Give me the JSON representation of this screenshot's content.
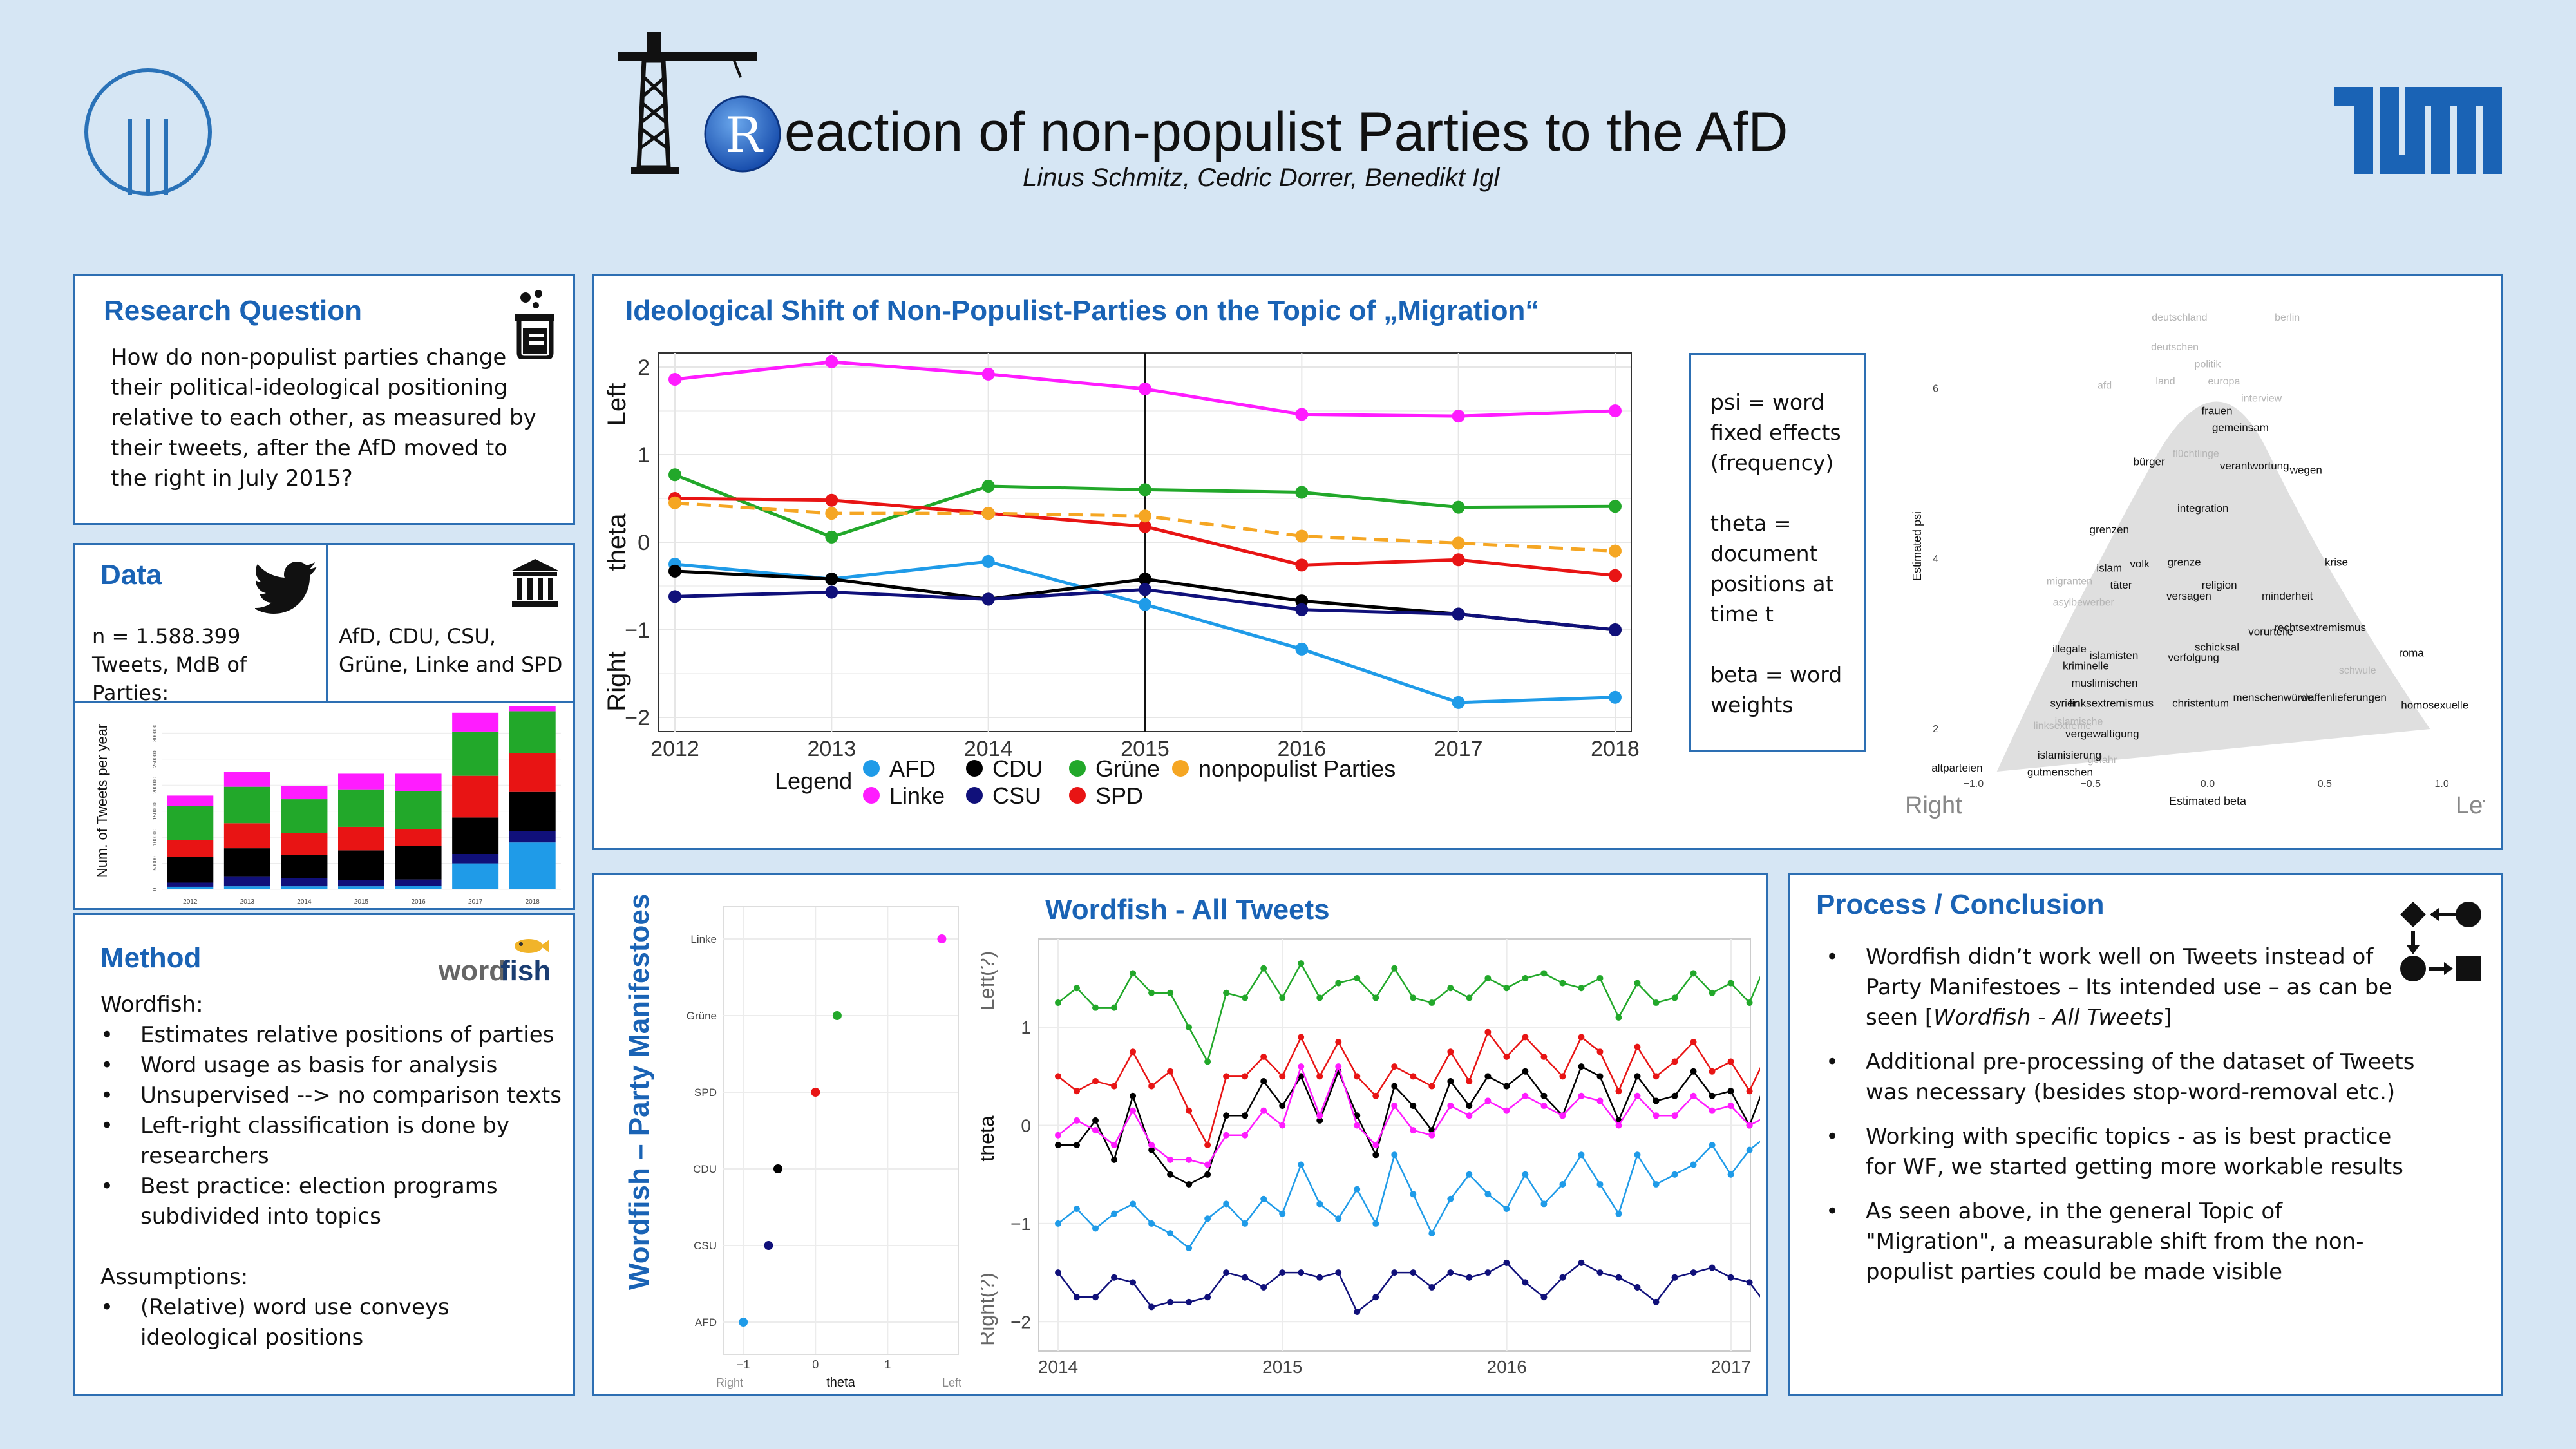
{
  "header": {
    "title_initial": "R",
    "title_rest": "eaction of non-populist Parties to the AfD",
    "authors": "Linus Schmitz, Cedric Dorrer, Benedikt Igl",
    "right_logo": "TUM"
  },
  "research_question": {
    "title": "Research Question",
    "text": "How do non-populist parties change their political-ideological positioning relative to each other, as measured by their tweets, after the AfD moved to the right in July 2015?"
  },
  "data_panel": {
    "title": "Data",
    "left_text": "n = 1.588.399 Tweets, MdB of Parties:",
    "right_text": "AfD, CDU, CSU, Grüne, Linke and SPD"
  },
  "method": {
    "title": "Method",
    "logo_word": "word",
    "logo_fish": "fish",
    "intro": "Wordfish:",
    "bullets": [
      "Estimates relative positions of parties",
      "Word usage as basis for analysis",
      "Unsupervised --> no comparison texts",
      "Left-right classification is done by researchers",
      "Best practice: election programs subdivided into topics"
    ],
    "assumptions_title": "Assumptions:",
    "assumptions": [
      "(Relative) word use conveys ideological positions"
    ]
  },
  "ideological": {
    "title": "Ideological Shift of Non-Populist-Parties on the Topic of „Migration“",
    "definitions": [
      "psi = word fixed effects (frequency)",
      "theta = document positions at time t",
      "beta = word weights"
    ],
    "scatter_left_label": "Right",
    "scatter_right_label": "Left"
  },
  "wordfish_manifestos_title": "Wordfish – Party Manifestoes",
  "wordfish_all_title": "Wordfish - All Tweets",
  "conclusion": {
    "title": "Process / Conclusion",
    "bullets": [
      {
        "pre": "Wordfish didn’t work well on Tweets instead of Party Manifestoes – Its intended use – as can be seen [",
        "em": "Wordfish - All Tweets",
        "post": "]"
      },
      {
        "pre": "Additional pre-processing of the dataset of Tweets was necessary (besides stop-word-removal etc.)",
        "em": "",
        "post": ""
      },
      {
        "pre": "Working with specific topics - as is best practice for WF, we started getting more workable results",
        "em": "",
        "post": ""
      },
      {
        "pre": "As seen above, in the general Topic of  \"Migration\", a measurable shift from the non-populist parties could be made visible",
        "em": "",
        "post": ""
      }
    ]
  },
  "colors": {
    "AFD": "#1f9be8",
    "Linke": "#ff1cff",
    "CDU": "#000000",
    "Grüne": "#22a82a",
    "CSU": "#10107a",
    "SPD": "#e81414",
    "nonpopulist": "#f5a623",
    "accent": "#1a63b5"
  },
  "chart_data": [
    {
      "type": "line",
      "title": "",
      "xlabel": "",
      "ylabel": "theta",
      "ylabel_top": "Left",
      "ylabel_bottom": "Right",
      "x": [
        2012,
        2013,
        2014,
        2015,
        2016,
        2017,
        2018
      ],
      "xlim": [
        2012,
        2018
      ],
      "ylim": [
        -2,
        2
      ],
      "yticks": [
        2,
        1,
        0,
        -1,
        -2
      ],
      "yticks_text": [
        "2",
        "1",
        "0",
        "−1",
        "−2"
      ],
      "vline": 2015,
      "legend_title": "Legend",
      "series": [
        {
          "name": "AFD",
          "values": [
            -0.25,
            -0.42,
            -0.22,
            -0.71,
            -1.22,
            -1.83,
            -1.77
          ]
        },
        {
          "name": "Linke",
          "values": [
            1.86,
            2.06,
            1.92,
            1.75,
            1.46,
            1.44,
            1.5
          ]
        },
        {
          "name": "CDU",
          "values": [
            -0.33,
            -0.42,
            -0.65,
            -0.42,
            -0.67,
            -0.82,
            -1.0
          ]
        },
        {
          "name": "CSU",
          "values": [
            -0.62,
            -0.57,
            -0.65,
            -0.54,
            -0.77,
            -0.82,
            -1.0
          ]
        },
        {
          "name": "Grüne",
          "values": [
            0.77,
            0.06,
            0.64,
            0.6,
            0.57,
            0.4,
            0.41
          ]
        },
        {
          "name": "SPD",
          "values": [
            0.5,
            0.48,
            0.33,
            0.18,
            -0.26,
            -0.2,
            -0.38
          ]
        },
        {
          "name": "nonpopulist Parties",
          "dashed": true,
          "values": [
            0.45,
            0.33,
            0.33,
            0.3,
            0.07,
            -0.01,
            -0.1
          ]
        }
      ]
    },
    {
      "type": "bar",
      "title": "",
      "ylabel": "Num. of Tweets per year",
      "categories": [
        "2012",
        "2013",
        "2014",
        "2015",
        "2016",
        "2017",
        "2018"
      ],
      "ylim": [
        0,
        340000
      ],
      "yticks": [
        0,
        50000,
        100000,
        150000,
        200000,
        250000,
        300000
      ],
      "yticks_text": [
        "0",
        "50000",
        "100000",
        "150000",
        "200000",
        "250000",
        "300000"
      ],
      "stack_order": [
        "AFD",
        "CSU",
        "CDU",
        "SPD",
        "Grüne",
        "Linke"
      ],
      "series": [
        {
          "name": "AFD",
          "values": [
            5000,
            6000,
            6000,
            6000,
            7000,
            50000,
            90000
          ]
        },
        {
          "name": "CSU",
          "values": [
            8000,
            18000,
            16000,
            12000,
            12000,
            18000,
            22000
          ]
        },
        {
          "name": "CDU",
          "values": [
            50000,
            55000,
            44000,
            57000,
            65000,
            70000,
            75000
          ]
        },
        {
          "name": "SPD",
          "values": [
            32000,
            48000,
            42000,
            45000,
            32000,
            80000,
            75000
          ]
        },
        {
          "name": "Grüne",
          "values": [
            65000,
            70000,
            65000,
            72000,
            72000,
            85000,
            80000
          ]
        },
        {
          "name": "Linke",
          "values": [
            20000,
            28000,
            26000,
            30000,
            34000,
            36000,
            38000
          ]
        }
      ]
    },
    {
      "type": "scatter",
      "xlabel": "Estimated beta",
      "ylabel": "Estimated psi",
      "xlim": [
        -1.1,
        1.1
      ],
      "ylim": [
        1.5,
        6.8
      ],
      "xticks": [
        -1.0,
        -0.5,
        0.0,
        0.5,
        1.0
      ],
      "xticks_text": [
        "−1.0",
        "−0.5",
        "0.0",
        "0.5",
        "1.0"
      ],
      "yticks": [
        2,
        4,
        6
      ],
      "highlighted_words": [
        {
          "w": "frauen",
          "x": 0.04,
          "y": 5.7
        },
        {
          "w": "gemeinsam",
          "x": 0.14,
          "y": 5.5
        },
        {
          "w": "bürger",
          "x": -0.25,
          "y": 5.1
        },
        {
          "w": "verantwortung",
          "x": 0.2,
          "y": 5.05
        },
        {
          "w": "wegen",
          "x": 0.42,
          "y": 5.0
        },
        {
          "w": "integration",
          "x": -0.02,
          "y": 4.55
        },
        {
          "w": "grenzen",
          "x": -0.42,
          "y": 4.3
        },
        {
          "w": "islam",
          "x": -0.42,
          "y": 3.85
        },
        {
          "w": "volk",
          "x": -0.29,
          "y": 3.9
        },
        {
          "w": "grenze",
          "x": -0.1,
          "y": 3.92
        },
        {
          "w": "krise",
          "x": 0.55,
          "y": 3.92
        },
        {
          "w": "täter",
          "x": -0.37,
          "y": 3.65
        },
        {
          "w": "religion",
          "x": 0.05,
          "y": 3.65
        },
        {
          "w": "versagen",
          "x": -0.08,
          "y": 3.52
        },
        {
          "w": "minderheit",
          "x": 0.34,
          "y": 3.52
        },
        {
          "w": "vorurteile",
          "x": 0.27,
          "y": 3.1
        },
        {
          "w": "rechtsextremismus",
          "x": 0.48,
          "y": 3.15
        },
        {
          "w": "illegale",
          "x": -0.59,
          "y": 2.9
        },
        {
          "w": "schicksal",
          "x": 0.04,
          "y": 2.92
        },
        {
          "w": "roma",
          "x": 0.87,
          "y": 2.85
        },
        {
          "w": "islamisten",
          "x": -0.4,
          "y": 2.82
        },
        {
          "w": "verfolgung",
          "x": -0.06,
          "y": 2.8
        },
        {
          "w": "kriminelle",
          "x": -0.52,
          "y": 2.7
        },
        {
          "w": "muslimischen",
          "x": -0.44,
          "y": 2.5
        },
        {
          "w": "syrien",
          "x": -0.61,
          "y": 2.26
        },
        {
          "w": "linksextremismus",
          "x": -0.41,
          "y": 2.26
        },
        {
          "w": "christentum",
          "x": -0.03,
          "y": 2.26
        },
        {
          "w": "menschenwürde",
          "x": 0.28,
          "y": 2.33
        },
        {
          "w": "waffenlieferungen",
          "x": 0.58,
          "y": 2.33
        },
        {
          "w": "homosexuelle",
          "x": 0.97,
          "y": 2.24
        },
        {
          "w": "vergewaltigung",
          "x": -0.45,
          "y": 1.9
        },
        {
          "w": "islamisierung",
          "x": -0.59,
          "y": 1.65
        },
        {
          "w": "gutmenschen",
          "x": -0.63,
          "y": 1.45
        },
        {
          "w": "altparteien",
          "x": -1.07,
          "y": 1.5
        }
      ],
      "grey_words": [
        {
          "w": "deutschland",
          "x": -0.12,
          "y": 6.8
        },
        {
          "w": "berlin",
          "x": 0.34,
          "y": 6.8
        },
        {
          "w": "deutschen",
          "x": -0.14,
          "y": 6.45
        },
        {
          "w": "politik",
          "x": 0.0,
          "y": 6.25
        },
        {
          "w": "land",
          "x": -0.18,
          "y": 6.05
        },
        {
          "w": "europa",
          "x": 0.07,
          "y": 6.05
        },
        {
          "w": "afd",
          "x": -0.44,
          "y": 6.0
        },
        {
          "w": "interview",
          "x": 0.23,
          "y": 5.85
        },
        {
          "w": "migranten",
          "x": -0.59,
          "y": 3.7
        },
        {
          "w": "flüchtlinge",
          "x": -0.05,
          "y": 5.2
        },
        {
          "w": "asylbewerber",
          "x": -0.53,
          "y": 3.45
        },
        {
          "w": "schwule",
          "x": 0.64,
          "y": 2.65
        },
        {
          "w": "linksextreme",
          "x": -0.62,
          "y": 2.0
        },
        {
          "w": "islamische",
          "x": -0.55,
          "y": 2.05
        },
        {
          "w": "gefahr",
          "x": -0.45,
          "y": 1.6
        }
      ]
    },
    {
      "type": "scatter",
      "xlabel": "theta",
      "xlabel_left": "Right",
      "xlabel_right": "Left",
      "xlim": [
        -1.1,
        1.8
      ],
      "xticks": [
        -1,
        0,
        1
      ],
      "xticks_text": [
        "−1",
        "0",
        "1"
      ],
      "categories": [
        "AFD",
        "CSU",
        "CDU",
        "SPD",
        "Grüne",
        "Linke"
      ],
      "category_labels": [
        "AFD",
        "CSU",
        "CDU",
        "SPD",
        "Grüne",
        "Linke"
      ],
      "values": [
        -1.0,
        -0.65,
        -0.52,
        0.0,
        0.3,
        1.75
      ]
    },
    {
      "type": "line",
      "title": "Wordfish - All Tweets",
      "ylabel": "theta",
      "ylabel_top": "Left(?)",
      "ylabel_bottom": "Right(?)",
      "xlim": [
        2014.0,
        2017.0
      ],
      "ylim": [
        -2.3,
        1.9
      ],
      "xticks": [
        2014,
        2015,
        2016,
        2017
      ],
      "yticks": [
        1,
        0,
        -1,
        -2
      ],
      "yticks_text": [
        "1",
        "0",
        "−1",
        "−2"
      ],
      "x_start": 2014.0,
      "x_step": 0.0833,
      "series": [
        {
          "name": "Grüne",
          "values": [
            1.25,
            1.4,
            1.2,
            1.2,
            1.55,
            1.35,
            1.35,
            1.0,
            0.65,
            1.35,
            1.3,
            1.6,
            1.3,
            1.65,
            1.3,
            1.45,
            1.5,
            1.3,
            1.6,
            1.3,
            1.25,
            1.4,
            1.3,
            1.5,
            1.4,
            1.5,
            1.55,
            1.45,
            1.4,
            1.5,
            1.1,
            1.45,
            1.25,
            1.3,
            1.55,
            1.35,
            1.45,
            1.25,
            1.7,
            1.2,
            1.35,
            1.65,
            1.25,
            1.4,
            1.35,
            1.6,
            1.2
          ]
        },
        {
          "name": "SPD",
          "values": [
            0.5,
            0.35,
            0.45,
            0.4,
            0.75,
            0.4,
            0.55,
            0.15,
            -0.2,
            0.5,
            0.5,
            0.7,
            0.5,
            0.9,
            0.5,
            0.85,
            0.5,
            0.3,
            0.6,
            0.5,
            0.4,
            0.75,
            0.45,
            0.95,
            0.7,
            0.9,
            0.7,
            0.5,
            0.9,
            0.75,
            0.35,
            0.8,
            0.5,
            0.65,
            0.85,
            0.55,
            0.65,
            0.35,
            0.75,
            -0.2,
            0.6,
            1.1,
            0.6,
            0.8,
            0.6,
            1.15,
            0.75
          ]
        },
        {
          "name": "CDU",
          "values": [
            -0.2,
            -0.2,
            0.05,
            -0.35,
            0.3,
            -0.25,
            -0.5,
            -0.6,
            -0.5,
            0.1,
            0.1,
            0.45,
            0.2,
            0.5,
            0.05,
            0.55,
            0.1,
            -0.3,
            0.4,
            0.2,
            -0.05,
            0.45,
            0.2,
            0.5,
            0.4,
            0.55,
            0.3,
            0.1,
            0.6,
            0.5,
            0.05,
            0.5,
            0.25,
            0.3,
            0.55,
            0.3,
            0.35,
            0.0,
            0.5,
            -0.25,
            0.4,
            0.75,
            0.3,
            0.6,
            0.5,
            0.65,
            0.4
          ]
        },
        {
          "name": "Linke",
          "values": [
            -0.1,
            0.05,
            -0.05,
            -0.2,
            0.15,
            -0.2,
            -0.35,
            -0.35,
            -0.4,
            -0.1,
            -0.1,
            0.15,
            0.0,
            0.6,
            0.1,
            0.6,
            0.0,
            -0.2,
            0.2,
            -0.05,
            -0.1,
            0.2,
            0.1,
            0.25,
            0.15,
            0.3,
            0.2,
            0.1,
            0.3,
            0.25,
            0.0,
            0.3,
            0.1,
            0.1,
            0.3,
            0.15,
            0.2,
            0.0,
            0.1,
            -0.45,
            0.2,
            0.35,
            0.1,
            0.25,
            0.3,
            0.3,
            -0.05
          ]
        },
        {
          "name": "AFD",
          "values": [
            -1.0,
            -0.85,
            -1.05,
            -0.9,
            -0.8,
            -1.0,
            -1.1,
            -1.25,
            -0.95,
            -0.8,
            -1.0,
            -0.75,
            -0.9,
            -0.4,
            -0.8,
            -0.95,
            -0.65,
            -1.0,
            -0.3,
            -0.7,
            -1.1,
            -0.75,
            -0.5,
            -0.7,
            -0.85,
            -0.5,
            -0.8,
            -0.6,
            -0.3,
            -0.6,
            -0.9,
            -0.3,
            -0.6,
            -0.5,
            -0.4,
            -0.2,
            -0.5,
            -0.25,
            -0.1,
            -0.5,
            -0.2,
            0.1,
            -0.4,
            -0.15,
            -0.3,
            -0.4,
            -0.65
          ]
        },
        {
          "name": "CSU",
          "values": [
            -1.5,
            -1.75,
            -1.75,
            -1.55,
            -1.6,
            -1.85,
            -1.8,
            -1.8,
            -1.75,
            -1.5,
            -1.55,
            -1.65,
            -1.5,
            -1.5,
            -1.55,
            -1.5,
            -1.9,
            -1.75,
            -1.5,
            -1.5,
            -1.65,
            -1.5,
            -1.55,
            -1.5,
            -1.4,
            -1.6,
            -1.75,
            -1.55,
            -1.4,
            -1.5,
            -1.55,
            -1.65,
            -1.8,
            -1.55,
            -1.5,
            -1.45,
            -1.55,
            -1.6,
            -1.85,
            -1.7,
            -1.55,
            -1.9,
            -1.5,
            -1.8,
            -2.25,
            -1.45,
            -1.45
          ]
        }
      ]
    }
  ]
}
